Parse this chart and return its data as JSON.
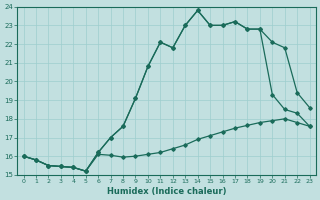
{
  "xlabel": "Humidex (Indice chaleur)",
  "xlim": [
    -0.5,
    23.5
  ],
  "ylim": [
    15,
    24
  ],
  "yticks": [
    15,
    16,
    17,
    18,
    19,
    20,
    21,
    22,
    23,
    24
  ],
  "xticks": [
    0,
    1,
    2,
    3,
    4,
    5,
    6,
    7,
    8,
    9,
    10,
    11,
    12,
    13,
    14,
    15,
    16,
    17,
    18,
    19,
    20,
    21,
    22,
    23
  ],
  "bg_color": "#c2e0e0",
  "line_color": "#1a6b5a",
  "grid_color": "#9ecece",
  "line1_x": [
    0,
    1,
    2,
    3,
    4,
    5,
    6,
    7,
    8,
    9,
    10,
    11,
    12,
    13,
    14,
    15,
    16,
    17,
    18,
    19,
    20,
    21,
    22,
    23
  ],
  "line1_y": [
    16.0,
    15.8,
    15.5,
    15.45,
    15.4,
    15.2,
    16.1,
    16.05,
    15.95,
    16.0,
    16.1,
    16.2,
    16.4,
    16.6,
    16.9,
    17.1,
    17.3,
    17.5,
    17.65,
    17.8,
    17.9,
    18.0,
    17.8,
    17.6
  ],
  "line2_x": [
    0,
    1,
    2,
    3,
    4,
    5,
    6,
    7,
    8,
    9,
    10,
    11,
    12,
    13,
    14,
    15,
    16,
    17,
    18,
    19,
    20,
    21,
    22,
    23
  ],
  "line2_y": [
    16.0,
    15.8,
    15.5,
    15.45,
    15.4,
    15.2,
    16.2,
    17.0,
    17.6,
    19.1,
    20.8,
    22.1,
    21.8,
    23.0,
    23.8,
    23.0,
    23.0,
    23.2,
    22.8,
    22.8,
    22.1,
    21.8,
    19.4,
    18.6
  ],
  "line3_x": [
    0,
    1,
    2,
    3,
    4,
    5,
    6,
    7,
    8,
    9,
    10,
    11,
    12,
    13,
    14,
    15,
    16,
    17,
    18,
    19,
    20,
    21,
    22,
    23
  ],
  "line3_y": [
    16.0,
    15.8,
    15.5,
    15.45,
    15.4,
    15.2,
    16.2,
    17.0,
    17.6,
    19.1,
    20.8,
    22.1,
    21.8,
    23.0,
    23.8,
    23.0,
    23.0,
    23.2,
    22.8,
    22.8,
    19.3,
    18.5,
    18.3,
    17.6
  ]
}
